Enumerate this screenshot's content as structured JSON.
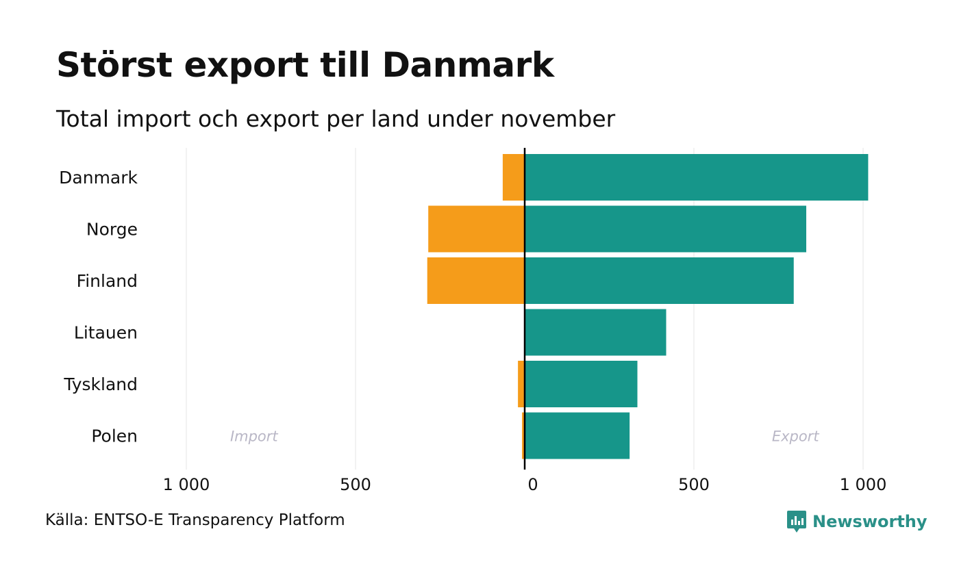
{
  "title": "Störst export till Danmark",
  "subtitle": "Total import och export per land under november",
  "source": "Källa: ENTSO-E Transparency Platform",
  "logo_text": "Newsworthy",
  "chart_data": {
    "type": "bar",
    "orientation": "horizontal-diverging",
    "categories": [
      "Danmark",
      "Norge",
      "Finland",
      "Litauen",
      "Tyskland",
      "Polen"
    ],
    "series": [
      {
        "name": "Import",
        "color": "#f59c1a",
        "values": [
          -65,
          -285,
          -288,
          -2,
          -20,
          -8
        ]
      },
      {
        "name": "Export",
        "color": "#16968a",
        "values": [
          1015,
          832,
          795,
          418,
          333,
          310
        ]
      }
    ],
    "xlim": [
      -1000,
      1000
    ],
    "xticks": [
      {
        "value": -1000,
        "label": "1 000"
      },
      {
        "value": -500,
        "label": "500"
      },
      {
        "value": 0,
        "label": "0"
      },
      {
        "value": 500,
        "label": "500"
      },
      {
        "value": 1000,
        "label": "1 000"
      }
    ],
    "annotations": [
      {
        "text": "Import",
        "x": -800,
        "row": 5
      },
      {
        "text": "Export",
        "x": 800,
        "row": 5
      }
    ],
    "grid": true,
    "zero_line_color": "#000000",
    "grid_color": "#e6e6e6",
    "annotation_color": "#b9b7c6"
  }
}
